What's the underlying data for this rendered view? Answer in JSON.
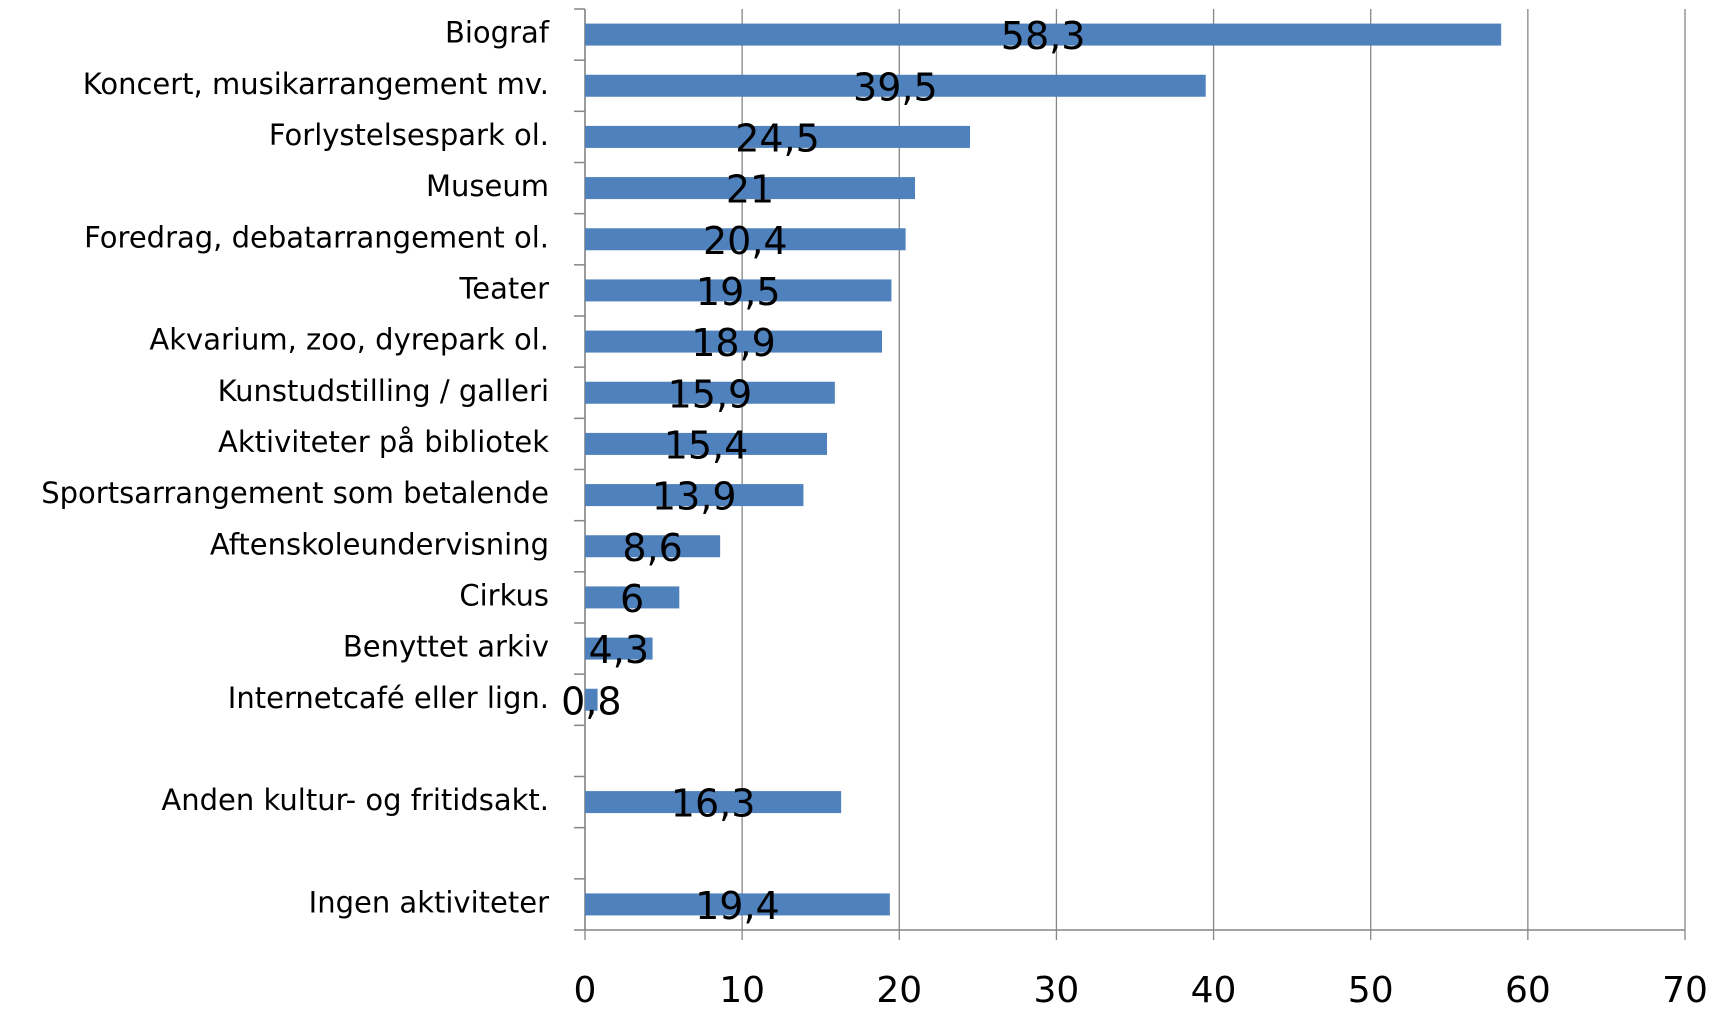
{
  "chart_data": {
    "type": "hbar",
    "categories": [
      "Biograf",
      "Koncert, musikarrangement mv.",
      "Forlystelsespark ol.",
      "Museum",
      "Foredrag, debatarrangement ol.",
      "Teater",
      "Akvarium, zoo, dyrepark ol.",
      "Kunstudstilling / galleri",
      "Aktiviteter på bibliotek",
      "Sportsarrangement som betalende",
      "Aftenskoleundervisning",
      "Cirkus",
      "Benyttet arkiv",
      "Internetcafé eller lign.",
      null,
      "Anden kultur- og fritidsakt.",
      null,
      "Ingen aktiviteter"
    ],
    "values": [
      58.3,
      39.5,
      24.5,
      21,
      20.4,
      19.5,
      18.9,
      15.9,
      15.4,
      13.9,
      8.6,
      6,
      4.3,
      0.8,
      null,
      16.3,
      null,
      19.4
    ],
    "value_labels": [
      "58,3",
      "39,5",
      "24,5",
      "21",
      "20,4",
      "19,5",
      "18,9",
      "15,9",
      "15,4",
      "13,9",
      "8,6",
      "6",
      "4,3",
      "0,8",
      null,
      "16,3",
      null,
      "19,4"
    ],
    "color": "#4f81bd",
    "xlim": [
      0,
      70
    ],
    "xticks": [
      0,
      10,
      20,
      30,
      40,
      50,
      60,
      70
    ],
    "grid": true
  }
}
